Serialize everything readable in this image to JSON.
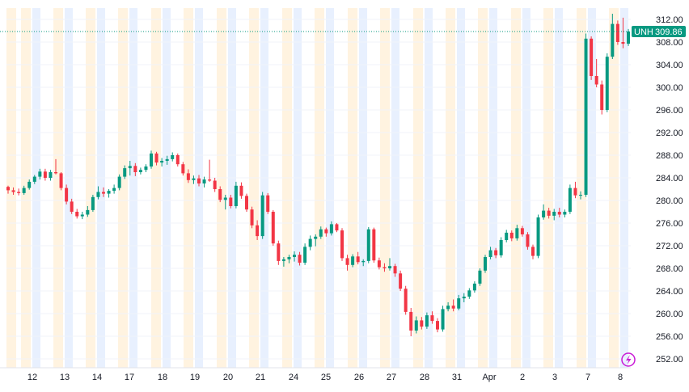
{
  "chart_data": {
    "type": "candlestick",
    "symbol": "UNH",
    "last_price": "309.86",
    "colors": {
      "up": "#089981",
      "down": "#f23645",
      "session_pre": "#fff3e0",
      "session_post": "#e8f0fe",
      "price_tag": "#089981",
      "grid": "#f0f3fa",
      "axis_text": "#131722"
    },
    "ylim": [
      250,
      314
    ],
    "y_ticks": [
      "252.00",
      "256.00",
      "260.00",
      "264.00",
      "268.00",
      "272.00",
      "276.00",
      "280.00",
      "284.00",
      "288.00",
      "292.00",
      "296.00",
      "300.00",
      "304.00",
      "308.00",
      "312.00"
    ],
    "x_ticks": [
      "12",
      "13",
      "14",
      "17",
      "18",
      "19",
      "20",
      "21",
      "24",
      "25",
      "26",
      "27",
      "28",
      "31",
      "Apr",
      "2",
      "3",
      "7",
      "8"
    ],
    "ohlc": [
      [
        282.4,
        282.6,
        281.2,
        281.8
      ],
      [
        281.8,
        282.3,
        281.0,
        281.5
      ],
      [
        281.5,
        282.1,
        280.9,
        281.3
      ],
      [
        281.3,
        282.6,
        281.0,
        282.2
      ],
      [
        282.2,
        283.7,
        281.9,
        283.3
      ],
      [
        283.3,
        284.5,
        282.9,
        284.2
      ],
      [
        284.2,
        285.6,
        283.7,
        285.1
      ],
      [
        285.1,
        285.6,
        283.5,
        284.0
      ],
      [
        284.0,
        285.4,
        283.5,
        285.0
      ],
      [
        285.0,
        287.3,
        284.6,
        284.8
      ],
      [
        284.8,
        285.0,
        281.8,
        282.2
      ],
      [
        282.2,
        282.8,
        279.3,
        279.8
      ],
      [
        279.8,
        280.3,
        277.6,
        278.0
      ],
      [
        278.0,
        278.5,
        276.8,
        277.2
      ],
      [
        277.2,
        278.0,
        276.7,
        277.5
      ],
      [
        277.5,
        279.0,
        277.1,
        278.3
      ],
      [
        278.3,
        281.0,
        278.0,
        280.6
      ],
      [
        280.6,
        282.5,
        280.2,
        281.5
      ],
      [
        281.5,
        282.3,
        280.6,
        281.2
      ],
      [
        281.2,
        282.0,
        280.5,
        281.7
      ],
      [
        281.7,
        282.8,
        281.2,
        282.2
      ],
      [
        282.2,
        284.6,
        281.8,
        284.2
      ],
      [
        284.2,
        286.2,
        283.8,
        285.7
      ],
      [
        285.7,
        287.0,
        284.4,
        286.1
      ],
      [
        286.1,
        286.6,
        284.3,
        285.0
      ],
      [
        285.0,
        285.8,
        284.6,
        285.4
      ],
      [
        285.4,
        286.4,
        285.0,
        286.0
      ],
      [
        286.0,
        288.8,
        285.6,
        288.3
      ],
      [
        288.3,
        288.6,
        286.2,
        286.7
      ],
      [
        286.7,
        287.5,
        286.0,
        287.0
      ],
      [
        287.0,
        287.9,
        286.3,
        287.3
      ],
      [
        287.3,
        288.5,
        286.9,
        288.0
      ],
      [
        288.0,
        288.3,
        286.0,
        286.4
      ],
      [
        286.4,
        286.8,
        284.4,
        284.8
      ],
      [
        284.8,
        285.5,
        283.1,
        283.6
      ],
      [
        283.6,
        284.4,
        282.9,
        283.9
      ],
      [
        283.9,
        284.5,
        282.5,
        283.0
      ],
      [
        283.0,
        284.2,
        282.3,
        283.7
      ],
      [
        283.7,
        287.2,
        283.3,
        283.5
      ],
      [
        283.5,
        284.0,
        281.5,
        282.0
      ],
      [
        282.0,
        282.5,
        279.7,
        280.1
      ],
      [
        280.1,
        281.0,
        278.4,
        280.5
      ],
      [
        280.5,
        281.0,
        278.6,
        279.0
      ],
      [
        279.0,
        283.3,
        278.6,
        282.6
      ],
      [
        282.6,
        283.2,
        280.3,
        280.8
      ],
      [
        280.8,
        281.2,
        278.0,
        278.4
      ],
      [
        278.4,
        278.9,
        275.1,
        275.6
      ],
      [
        275.6,
        276.5,
        273.0,
        273.7
      ],
      [
        273.7,
        281.5,
        273.2,
        280.9
      ],
      [
        280.9,
        281.3,
        277.6,
        278.0
      ],
      [
        278.0,
        278.3,
        272.0,
        272.4
      ],
      [
        272.4,
        272.9,
        268.6,
        269.3
      ],
      [
        269.3,
        270.0,
        268.3,
        269.6
      ],
      [
        269.6,
        270.4,
        268.9,
        270.0
      ],
      [
        270.0,
        271.0,
        269.2,
        270.4
      ],
      [
        270.4,
        270.9,
        268.5,
        269.0
      ],
      [
        269.0,
        272.4,
        268.6,
        271.8
      ],
      [
        271.8,
        273.8,
        271.2,
        273.2
      ],
      [
        273.2,
        274.0,
        271.9,
        273.6
      ],
      [
        273.6,
        275.4,
        273.2,
        274.9
      ],
      [
        274.9,
        275.2,
        273.6,
        274.2
      ],
      [
        274.2,
        276.3,
        273.8,
        275.8
      ],
      [
        275.8,
        276.0,
        274.4,
        274.7
      ],
      [
        274.7,
        275.1,
        269.3,
        269.8
      ],
      [
        269.8,
        270.4,
        267.6,
        268.6
      ],
      [
        268.6,
        270.5,
        268.2,
        270.1
      ],
      [
        270.1,
        270.9,
        268.7,
        269.1
      ],
      [
        269.1,
        269.6,
        268.4,
        269.3
      ],
      [
        269.3,
        275.3,
        268.9,
        274.9
      ],
      [
        274.9,
        275.2,
        269.0,
        269.4
      ],
      [
        269.4,
        269.9,
        267.8,
        268.2
      ],
      [
        268.2,
        268.9,
        267.4,
        268.0
      ],
      [
        268.0,
        269.8,
        267.6,
        268.4
      ],
      [
        268.4,
        268.8,
        266.5,
        267.1
      ],
      [
        267.1,
        267.6,
        264.0,
        264.4
      ],
      [
        264.4,
        264.9,
        259.8,
        260.3
      ],
      [
        260.3,
        261.0,
        256.0,
        257.0
      ],
      [
        257.0,
        259.5,
        256.5,
        258.8
      ],
      [
        258.8,
        259.4,
        257.2,
        257.7
      ],
      [
        257.7,
        260.2,
        257.3,
        259.7
      ],
      [
        259.7,
        260.4,
        258.2,
        258.7
      ],
      [
        258.7,
        259.2,
        256.7,
        257.2
      ],
      [
        257.2,
        261.4,
        256.8,
        260.8
      ],
      [
        260.8,
        262.0,
        260.4,
        261.4
      ],
      [
        261.4,
        262.5,
        260.4,
        260.9
      ],
      [
        260.9,
        263.3,
        260.6,
        262.7
      ],
      [
        262.7,
        263.6,
        262.0,
        263.0
      ],
      [
        263.0,
        264.5,
        262.6,
        264.1
      ],
      [
        264.1,
        265.7,
        263.7,
        265.3
      ],
      [
        265.3,
        268.0,
        264.9,
        267.6
      ],
      [
        267.6,
        270.4,
        267.2,
        270.0
      ],
      [
        270.0,
        271.8,
        269.6,
        271.2
      ],
      [
        271.2,
        271.6,
        269.8,
        270.3
      ],
      [
        270.3,
        273.5,
        269.9,
        273.0
      ],
      [
        273.0,
        274.8,
        272.6,
        274.3
      ],
      [
        274.3,
        274.7,
        272.8,
        273.3
      ],
      [
        273.3,
        275.7,
        272.9,
        275.1
      ],
      [
        275.1,
        275.5,
        273.6,
        274.0
      ],
      [
        274.0,
        274.4,
        271.3,
        271.8
      ],
      [
        271.8,
        272.2,
        269.6,
        270.2
      ],
      [
        270.2,
        277.5,
        269.8,
        277.0
      ],
      [
        277.0,
        279.3,
        276.6,
        278.2
      ],
      [
        278.2,
        278.7,
        276.8,
        277.3
      ],
      [
        277.3,
        278.5,
        276.5,
        278.0
      ],
      [
        278.0,
        278.7,
        277.0,
        277.5
      ],
      [
        277.5,
        278.4,
        277.0,
        278.0
      ],
      [
        278.0,
        282.8,
        277.6,
        282.2
      ],
      [
        282.2,
        283.3,
        280.4,
        280.9
      ],
      [
        280.9,
        281.6,
        280.2,
        281.0
      ],
      [
        281.0,
        309.5,
        280.6,
        308.6
      ],
      [
        308.6,
        309.0,
        301.3,
        302.0
      ],
      [
        302.0,
        305.0,
        300.0,
        300.5
      ],
      [
        300.5,
        301.2,
        295.2,
        296.0
      ],
      [
        296.0,
        306.0,
        295.6,
        305.4
      ],
      [
        305.4,
        313.0,
        305.0,
        311.2
      ],
      [
        311.2,
        311.8,
        307.5,
        308.0
      ],
      [
        308.0,
        312.3,
        306.9,
        307.7
      ],
      [
        307.7,
        310.3,
        307.3,
        309.86
      ]
    ]
  }
}
